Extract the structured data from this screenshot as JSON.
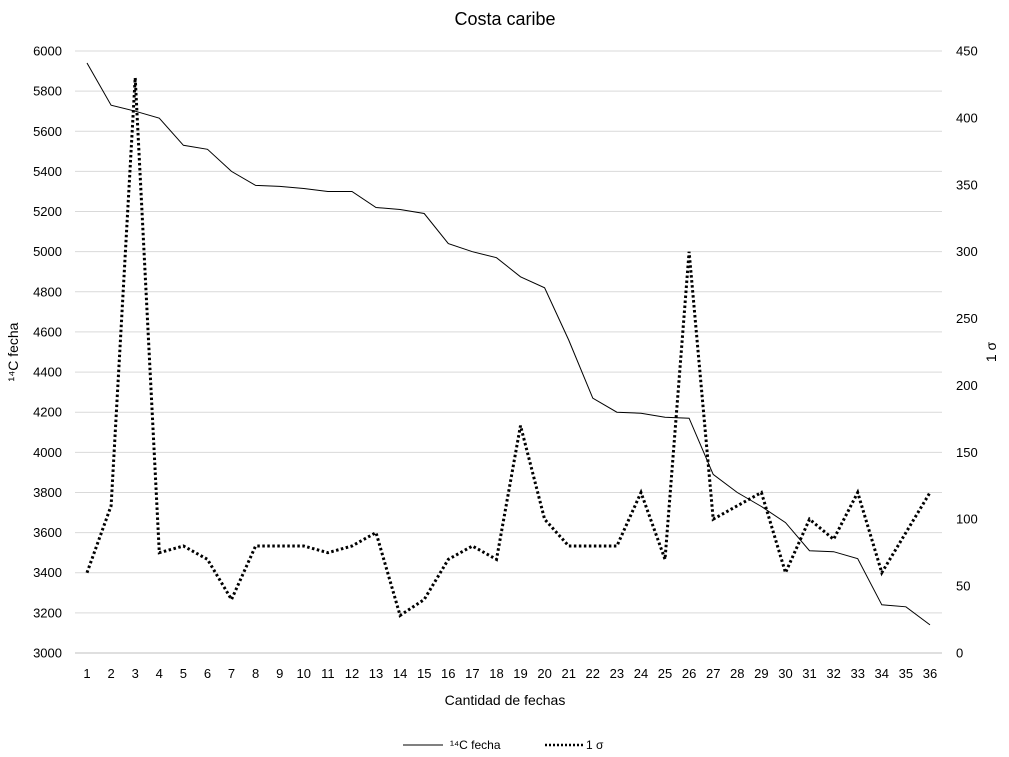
{
  "chart_data": {
    "type": "line",
    "title": "Costa caribe",
    "xlabel": "Cantidad de fechas",
    "ylabel_left": "¹⁴C fecha",
    "ylabel_right": "1 σ",
    "x": [
      1,
      2,
      3,
      4,
      5,
      6,
      7,
      8,
      9,
      10,
      11,
      12,
      13,
      14,
      15,
      16,
      17,
      18,
      19,
      20,
      21,
      22,
      23,
      24,
      25,
      26,
      27,
      28,
      29,
      30,
      31,
      32,
      33,
      34,
      35,
      36
    ],
    "ylim_left": [
      3000,
      6000
    ],
    "yticks_left": [
      3000,
      3200,
      3400,
      3600,
      3800,
      4000,
      4200,
      4400,
      4600,
      4800,
      5000,
      5200,
      5400,
      5600,
      5800,
      6000
    ],
    "ylim_right": [
      0,
      450
    ],
    "yticks_right": [
      0,
      50,
      100,
      150,
      200,
      250,
      300,
      350,
      400,
      450
    ],
    "grid": true,
    "legend_position": "bottom",
    "series": [
      {
        "name": "¹⁴C fecha",
        "axis": "left",
        "style": "solid",
        "values": [
          5940,
          5730,
          5700,
          5665,
          5530,
          5510,
          5400,
          5330,
          5325,
          5315,
          5300,
          5300,
          5220,
          5210,
          5190,
          5040,
          5000,
          4970,
          4875,
          4820,
          4560,
          4270,
          4200,
          4195,
          4175,
          4170,
          3890,
          3800,
          3730,
          3650,
          3510,
          3505,
          3470,
          3240,
          3230,
          3140
        ]
      },
      {
        "name": "1 σ",
        "axis": "right",
        "style": "dotted",
        "values": [
          60,
          110,
          430,
          75,
          80,
          70,
          40,
          80,
          80,
          80,
          75,
          80,
          90,
          28,
          40,
          70,
          80,
          70,
          170,
          100,
          80,
          80,
          80,
          120,
          70,
          300,
          100,
          110,
          120,
          60,
          100,
          85,
          120,
          60,
          90,
          120
        ]
      }
    ]
  }
}
